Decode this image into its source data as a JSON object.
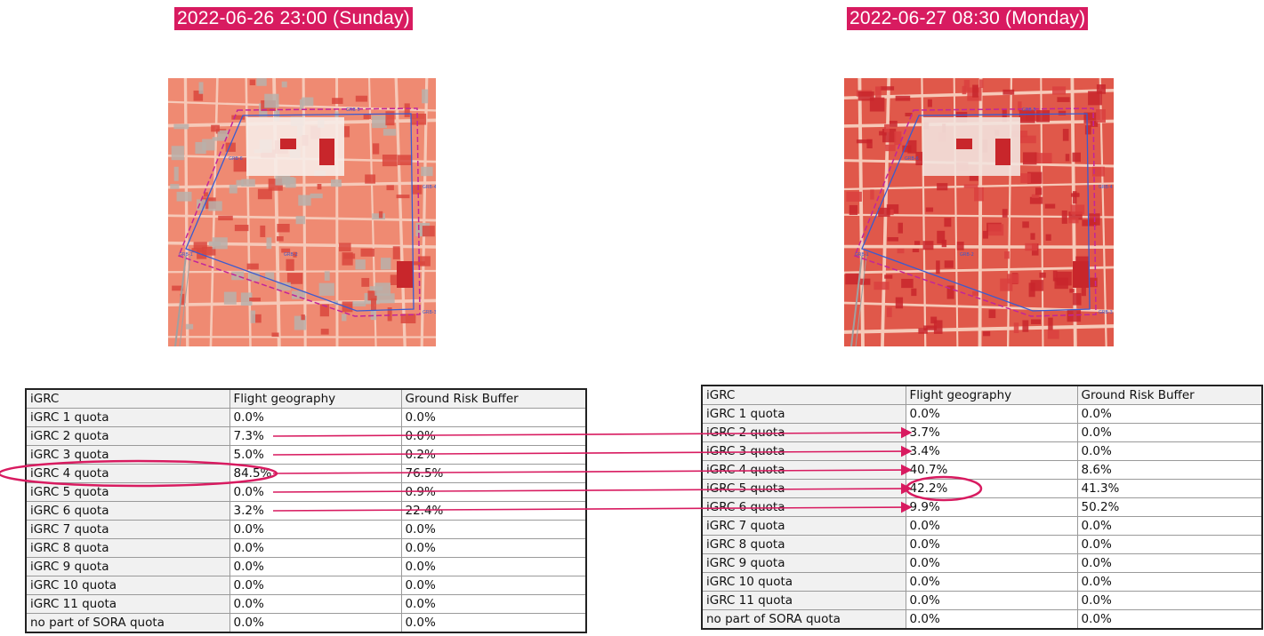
{
  "left": {
    "date_label": "2022-06-26 23:00 (Sunday)",
    "map_labels": [
      "GRB-5",
      "GRB-6",
      "GRB-4",
      "GRB-3",
      "GRB-2",
      "GRB-1"
    ],
    "table": {
      "headers": [
        "iGRC",
        "Flight geography",
        "Ground Risk Buffer"
      ],
      "rows": [
        [
          "iGRC 1 quota",
          "0.0%",
          "0.0%"
        ],
        [
          "iGRC 2 quota",
          "7.3%",
          "0.0%"
        ],
        [
          "iGRC 3 quota",
          "5.0%",
          "0.2%"
        ],
        [
          "iGRC 4 quota",
          "84.5%",
          "76.5%"
        ],
        [
          "iGRC 5 quota",
          "0.0%",
          "0.9%"
        ],
        [
          "iGRC 6 quota",
          "3.2%",
          "22.4%"
        ],
        [
          "iGRC 7 quota",
          "0.0%",
          "0.0%"
        ],
        [
          "iGRC 8 quota",
          "0.0%",
          "0.0%"
        ],
        [
          "iGRC 9 quota",
          "0.0%",
          "0.0%"
        ],
        [
          "iGRC 10 quota",
          "0.0%",
          "0.0%"
        ],
        [
          "iGRC 11 quota",
          "0.0%",
          "0.0%"
        ],
        [
          "no part of SORA quota",
          "0.0%",
          "0.0%"
        ]
      ]
    }
  },
  "right": {
    "date_label": "2022-06-27 08:30 (Monday)",
    "map_labels": [
      "GRB-5",
      "GRB-6",
      "GRB-4",
      "GRB-3",
      "GRB-2",
      "GRB-1"
    ],
    "table": {
      "headers": [
        "iGRC",
        "Flight geography",
        "Ground Risk Buffer"
      ],
      "rows": [
        [
          "iGRC 1 quota",
          "0.0%",
          "0.0%"
        ],
        [
          "iGRC 2 quota",
          "3.7%",
          "0.0%"
        ],
        [
          "iGRC 3 quota",
          "3.4%",
          "0.0%"
        ],
        [
          "iGRC 4 quota",
          "40.7%",
          "8.6%"
        ],
        [
          "iGRC 5 quota",
          "42.2%",
          "41.3%"
        ],
        [
          "iGRC 6 quota",
          "9.9%",
          "50.2%"
        ],
        [
          "iGRC 7 quota",
          "0.0%",
          "0.0%"
        ],
        [
          "iGRC 8 quota",
          "0.0%",
          "0.0%"
        ],
        [
          "iGRC 9 quota",
          "0.0%",
          "0.0%"
        ],
        [
          "iGRC 10 quota",
          "0.0%",
          "0.0%"
        ],
        [
          "iGRC 11 quota",
          "0.0%",
          "0.0%"
        ],
        [
          "no part of SORA quota",
          "0.0%",
          "0.0%"
        ]
      ]
    }
  },
  "colors": {
    "accent": "#d81b60",
    "arrow": "#d81b60",
    "map_light": "#ef8a72",
    "map_dark": "#e0584a",
    "building": "#c8262b",
    "route": "#3a5bd0",
    "buffer": "#c2259a"
  },
  "arrows": [
    {
      "from_row": 1,
      "to_row": 1
    },
    {
      "from_row": 2,
      "to_row": 2
    },
    {
      "from_row": 3,
      "to_row": 3
    },
    {
      "from_row": 4,
      "to_row": 4
    },
    {
      "from_row": 5,
      "to_row": 5
    }
  ],
  "highlights": [
    {
      "side": "left",
      "row": 3,
      "label": "iGRC 4 quota"
    },
    {
      "side": "right",
      "row": 4,
      "label": "42.2%"
    }
  ]
}
